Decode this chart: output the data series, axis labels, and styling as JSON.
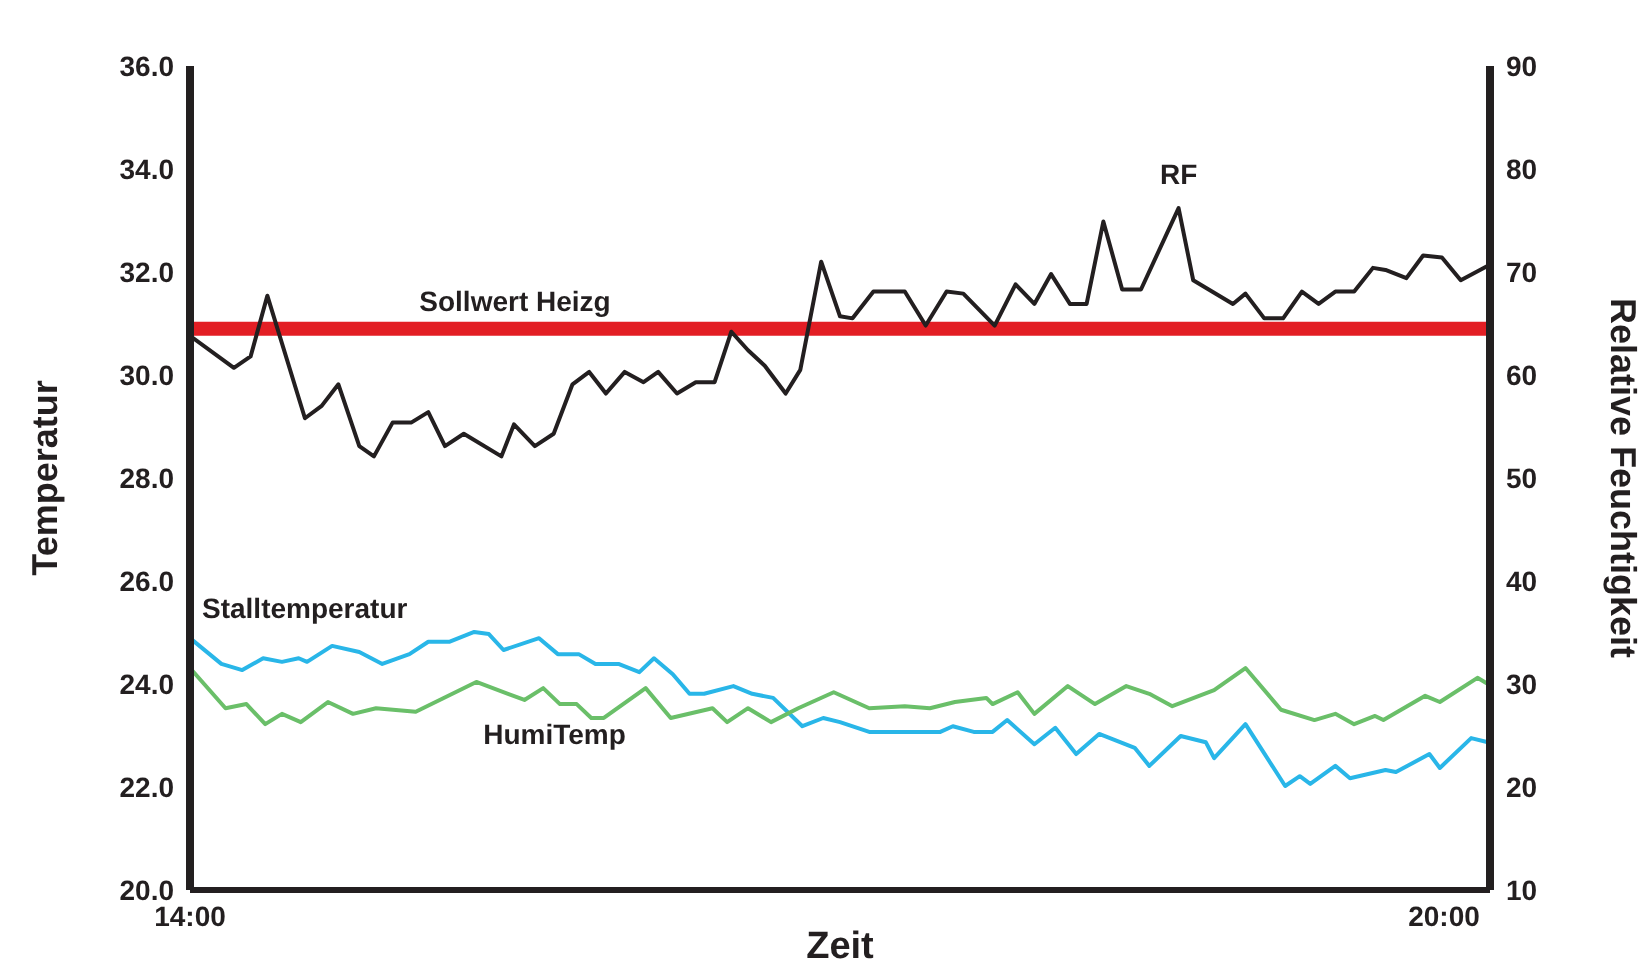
{
  "chart_data": {
    "type": "line",
    "xlabel": "Zeit",
    "ylabel": "Temperatur",
    "y2label": "Relative Feuchtigkeit",
    "xlim": [
      14,
      20.22
    ],
    "xticks": [
      {
        "value": 14,
        "label": "14:00"
      },
      {
        "value": 20,
        "label": "20:00"
      }
    ],
    "ylim": [
      20,
      36
    ],
    "yticks": [
      {
        "value": 20,
        "label": "20.0"
      },
      {
        "value": 22,
        "label": "22.0"
      },
      {
        "value": 24,
        "label": "24.0"
      },
      {
        "value": 26,
        "label": "26.0"
      },
      {
        "value": 28,
        "label": "28.0"
      },
      {
        "value": 30,
        "label": "30.0"
      },
      {
        "value": 32,
        "label": "32.0"
      },
      {
        "value": 34,
        "label": "34.0"
      },
      {
        "value": 36,
        "label": "36.0"
      }
    ],
    "y2lim": [
      10,
      90
    ],
    "y2ticks": [
      10,
      20,
      30,
      40,
      50,
      60,
      70,
      80,
      90
    ],
    "grid": false,
    "legend": false,
    "marker": "none",
    "line_style": "solid",
    "ref_lines": [
      {
        "axis": "y",
        "value": 30.9,
        "label": "Sollwert Heizg",
        "color": "#e31e24"
      }
    ],
    "series": [
      {
        "name": "RF",
        "color": "#231f20",
        "axis": "y2",
        "x": [
          14.0,
          14.21,
          14.29,
          14.37,
          14.55,
          14.63,
          14.71,
          14.81,
          14.88,
          14.97,
          15.06,
          15.14,
          15.22,
          15.31,
          15.49,
          15.55,
          15.65,
          15.74,
          15.83,
          15.91,
          15.99,
          16.08,
          16.17,
          16.24,
          16.33,
          16.42,
          16.51,
          16.59,
          16.67,
          16.75,
          16.85,
          16.92,
          17.02,
          17.11,
          17.17,
          17.27,
          17.42,
          17.52,
          17.62,
          17.7,
          17.85,
          17.95,
          18.04,
          18.12,
          18.21,
          18.29,
          18.37,
          18.46,
          18.55,
          18.73,
          18.8,
          18.99,
          19.05,
          19.14,
          19.23,
          19.32,
          19.4,
          19.48,
          19.57,
          19.66,
          19.72,
          19.82,
          19.9,
          19.99,
          20.08,
          20.21
        ],
        "values": [
          63.8,
          60.7,
          61.8,
          67.7,
          55.8,
          57.0,
          59.1,
          53.1,
          52.1,
          55.4,
          55.4,
          56.4,
          53.1,
          54.3,
          52.1,
          55.2,
          53.1,
          54.3,
          59.1,
          60.3,
          58.2,
          60.3,
          59.3,
          60.3,
          58.2,
          59.3,
          59.3,
          64.2,
          62.4,
          60.9,
          58.2,
          60.5,
          71.0,
          65.7,
          65.5,
          68.1,
          68.1,
          64.8,
          68.1,
          67.9,
          64.8,
          68.8,
          66.9,
          69.8,
          66.9,
          66.9,
          74.9,
          68.3,
          68.3,
          76.2,
          69.2,
          66.9,
          67.9,
          65.5,
          65.5,
          68.1,
          66.9,
          68.1,
          68.1,
          70.4,
          70.2,
          69.4,
          71.6,
          71.4,
          69.2,
          70.6
        ]
      },
      {
        "name": "Stalltemperatur",
        "color": "#29b6e8",
        "x": [
          14.0,
          14.15,
          14.25,
          14.35,
          14.44,
          14.52,
          14.56,
          14.68,
          14.81,
          14.92,
          15.05,
          15.14,
          15.24,
          15.36,
          15.43,
          15.5,
          15.67,
          15.76,
          15.86,
          15.94,
          16.05,
          16.15,
          16.22,
          16.31,
          16.39,
          16.46,
          16.6,
          16.69,
          16.79,
          16.93,
          17.03,
          17.11,
          17.25,
          17.59,
          17.65,
          17.75,
          17.84,
          17.91,
          18.04,
          18.14,
          18.24,
          18.35,
          18.52,
          18.59,
          18.74,
          18.86,
          18.9,
          19.05,
          19.24,
          19.31,
          19.36,
          19.48,
          19.55,
          19.72,
          19.77,
          19.93,
          19.98,
          20.13,
          20.21
        ],
        "values": [
          24.89,
          24.39,
          24.27,
          24.5,
          24.43,
          24.5,
          24.43,
          24.74,
          24.62,
          24.39,
          24.58,
          24.82,
          24.82,
          25.01,
          24.97,
          24.66,
          24.89,
          24.58,
          24.58,
          24.39,
          24.39,
          24.23,
          24.5,
          24.19,
          23.81,
          23.81,
          23.96,
          23.81,
          23.73,
          23.18,
          23.34,
          23.26,
          23.07,
          23.07,
          23.18,
          23.07,
          23.07,
          23.3,
          22.83,
          23.15,
          22.64,
          23.03,
          22.76,
          22.41,
          22.99,
          22.87,
          22.56,
          23.22,
          22.02,
          22.21,
          22.06,
          22.41,
          22.17,
          22.33,
          22.29,
          22.64,
          22.37,
          22.95,
          22.87
        ]
      },
      {
        "name": "HumiTemp",
        "color": "#6abf69",
        "x": [
          14.0,
          14.17,
          14.27,
          14.36,
          14.44,
          14.53,
          14.66,
          14.78,
          14.89,
          15.08,
          15.37,
          15.6,
          15.69,
          15.77,
          15.85,
          15.92,
          15.98,
          16.18,
          16.3,
          16.5,
          16.57,
          16.67,
          16.78,
          16.91,
          17.08,
          17.25,
          17.42,
          17.54,
          17.66,
          17.81,
          17.84,
          17.96,
          18.04,
          18.2,
          18.33,
          18.48,
          18.59,
          18.7,
          18.9,
          19.05,
          19.22,
          19.38,
          19.48,
          19.57,
          19.67,
          19.71,
          19.91,
          19.98,
          20.16,
          20.21
        ],
        "values": [
          24.31,
          23.53,
          23.61,
          23.22,
          23.42,
          23.26,
          23.65,
          23.42,
          23.53,
          23.46,
          24.04,
          23.69,
          23.92,
          23.61,
          23.61,
          23.34,
          23.34,
          23.92,
          23.34,
          23.53,
          23.26,
          23.53,
          23.26,
          23.53,
          23.84,
          23.53,
          23.57,
          23.53,
          23.65,
          23.73,
          23.61,
          23.84,
          23.42,
          23.96,
          23.61,
          23.96,
          23.81,
          23.57,
          23.88,
          24.31,
          23.5,
          23.3,
          23.42,
          23.22,
          23.38,
          23.3,
          23.77,
          23.65,
          24.12,
          24.0
        ]
      }
    ]
  }
}
